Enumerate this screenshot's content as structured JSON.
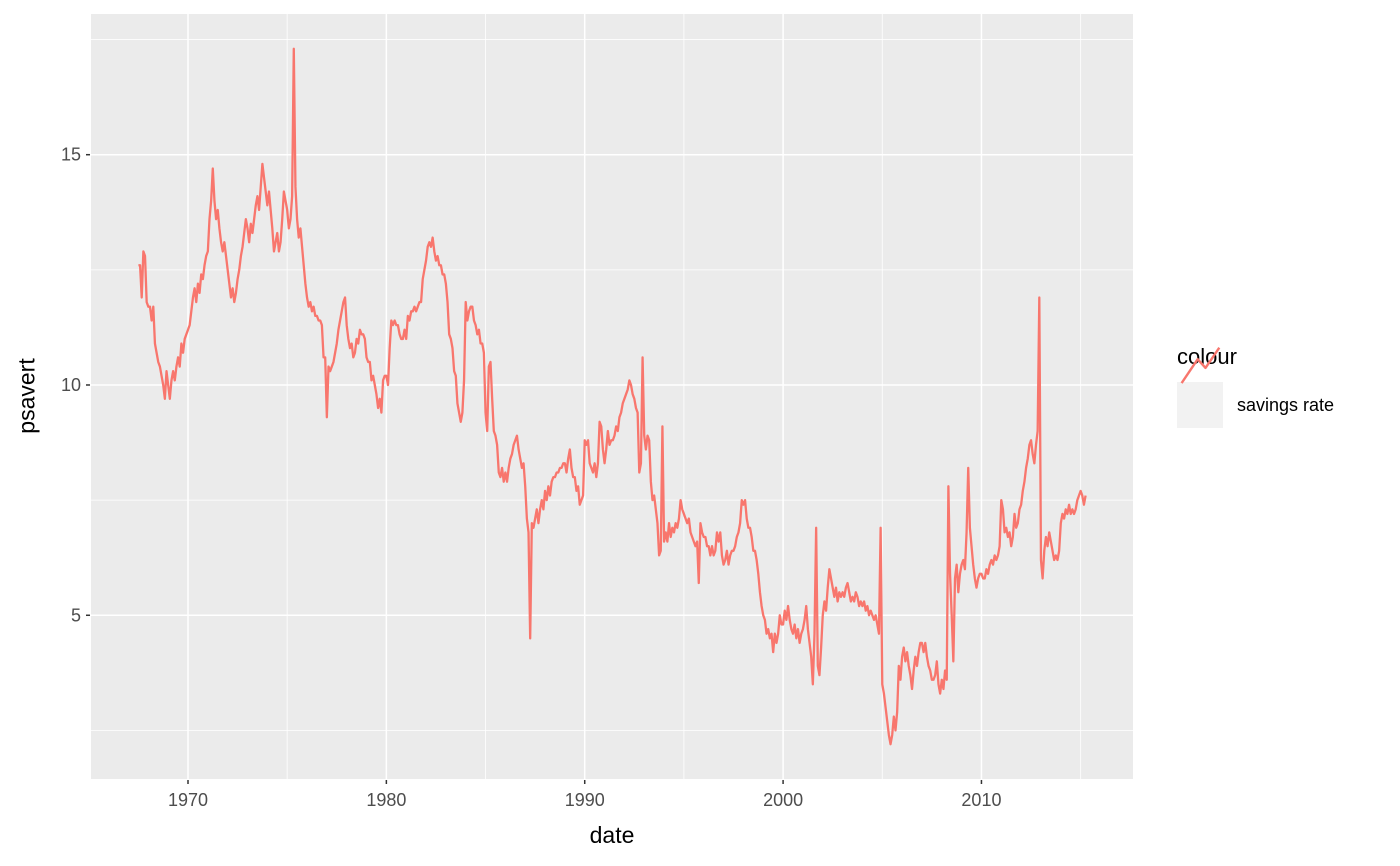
{
  "chart_data": {
    "type": "line",
    "title": "",
    "xlabel": "date",
    "ylabel": "psavert",
    "legend_title": "colour",
    "legend_position": "right",
    "grid": "on",
    "panel_background": "#EBEBEB",
    "gridline_color": "#FFFFFF",
    "tick_text_color": "#4D4D4D",
    "tick_mark_color": "#333333",
    "legend_key_fill": "#F2F2F2",
    "x_ticks": [
      1970,
      1980,
      1990,
      2000,
      2010
    ],
    "x_minor_ticks": [
      1965,
      1975,
      1985,
      1995,
      2005,
      2015
    ],
    "y_ticks": [
      5,
      10,
      15
    ],
    "y_minor_ticks": [
      2.5,
      7.5,
      12.5,
      17.5
    ],
    "xlim": [
      1965.11,
      2017.64
    ],
    "ylim": [
      1.445,
      18.055
    ],
    "series": [
      {
        "name": "savings rate",
        "color": "#F8766D",
        "x_start_year": 1967,
        "x_start_month": 7,
        "frequency": "monthly",
        "values": [
          12.6,
          12.6,
          11.9,
          12.9,
          12.8,
          11.8,
          11.7,
          11.7,
          11.4,
          11.7,
          10.9,
          10.7,
          10.5,
          10.4,
          10.2,
          10.0,
          9.7,
          10.3,
          10.0,
          9.7,
          10.1,
          10.3,
          10.1,
          10.4,
          10.6,
          10.4,
          10.9,
          10.7,
          11.0,
          11.1,
          11.2,
          11.3,
          11.6,
          11.9,
          12.1,
          11.8,
          12.2,
          12.0,
          12.4,
          12.3,
          12.6,
          12.8,
          12.9,
          13.6,
          14.0,
          14.7,
          14.0,
          13.6,
          13.8,
          13.4,
          13.1,
          12.9,
          13.1,
          12.8,
          12.5,
          12.2,
          11.9,
          12.1,
          11.8,
          12.0,
          12.3,
          12.5,
          12.8,
          13.0,
          13.3,
          13.6,
          13.4,
          13.1,
          13.5,
          13.3,
          13.6,
          13.9,
          14.1,
          13.8,
          14.3,
          14.8,
          14.5,
          14.2,
          13.9,
          14.2,
          13.8,
          13.4,
          12.9,
          13.1,
          13.3,
          12.9,
          13.1,
          13.6,
          14.2,
          14.0,
          13.8,
          13.4,
          13.6,
          14.1,
          17.3,
          14.3,
          13.6,
          13.2,
          13.4,
          13.0,
          12.6,
          12.2,
          11.9,
          11.7,
          11.8,
          11.6,
          11.7,
          11.5,
          11.5,
          11.4,
          11.4,
          11.3,
          10.6,
          10.6,
          9.3,
          10.4,
          10.3,
          10.4,
          10.5,
          10.7,
          10.9,
          11.2,
          11.4,
          11.6,
          11.8,
          11.9,
          11.3,
          11.0,
          10.8,
          10.9,
          10.6,
          10.7,
          11.0,
          10.9,
          11.2,
          11.1,
          11.1,
          11.0,
          10.6,
          10.5,
          10.5,
          10.1,
          10.2,
          10.0,
          9.8,
          9.5,
          9.7,
          9.4,
          10.1,
          10.2,
          10.2,
          10.0,
          10.8,
          11.4,
          11.3,
          11.4,
          11.3,
          11.3,
          11.1,
          11.0,
          11.0,
          11.2,
          11.0,
          11.5,
          11.4,
          11.6,
          11.6,
          11.7,
          11.6,
          11.7,
          11.8,
          11.8,
          12.3,
          12.5,
          12.7,
          13.0,
          13.1,
          13.0,
          13.2,
          12.9,
          12.7,
          12.8,
          12.6,
          12.6,
          12.4,
          12.4,
          12.2,
          11.8,
          11.1,
          11.0,
          10.8,
          10.3,
          10.2,
          9.6,
          9.4,
          9.2,
          9.4,
          10.1,
          11.8,
          11.4,
          11.6,
          11.7,
          11.7,
          11.4,
          11.3,
          11.1,
          11.2,
          10.9,
          10.9,
          10.7,
          9.4,
          9.0,
          10.4,
          10.5,
          9.7,
          9.0,
          8.9,
          8.7,
          8.1,
          8.0,
          8.2,
          7.9,
          8.1,
          7.9,
          8.2,
          8.4,
          8.5,
          8.7,
          8.8,
          8.9,
          8.6,
          8.4,
          8.2,
          8.3,
          7.8,
          7.1,
          6.8,
          4.5,
          7.0,
          6.9,
          7.1,
          7.3,
          7.0,
          7.3,
          7.5,
          7.3,
          7.7,
          7.5,
          7.8,
          7.6,
          7.9,
          8.0,
          8.0,
          8.1,
          8.1,
          8.2,
          8.2,
          8.3,
          8.3,
          8.1,
          8.4,
          8.6,
          8.2,
          8.0,
          8.0,
          7.7,
          7.8,
          7.4,
          7.5,
          7.6,
          8.8,
          8.7,
          8.8,
          8.3,
          8.2,
          8.1,
          8.3,
          8.0,
          8.3,
          9.2,
          9.1,
          8.6,
          8.3,
          8.6,
          9.0,
          8.7,
          8.8,
          8.8,
          8.9,
          9.1,
          9.0,
          9.3,
          9.4,
          9.6,
          9.7,
          9.8,
          9.9,
          10.1,
          10.0,
          9.8,
          9.7,
          9.5,
          9.4,
          8.1,
          8.3,
          10.6,
          8.9,
          8.6,
          8.9,
          8.8,
          7.9,
          7.5,
          7.6,
          7.3,
          7.0,
          6.3,
          6.4,
          9.1,
          6.6,
          6.8,
          6.6,
          7.0,
          6.7,
          6.9,
          6.8,
          7.0,
          6.9,
          7.1,
          7.5,
          7.3,
          7.2,
          7.1,
          7.0,
          7.1,
          6.8,
          6.7,
          6.6,
          6.5,
          6.6,
          5.7,
          7.0,
          6.8,
          6.7,
          6.7,
          6.5,
          6.5,
          6.3,
          6.5,
          6.3,
          6.4,
          6.8,
          6.6,
          6.8,
          6.3,
          6.1,
          6.2,
          6.4,
          6.1,
          6.3,
          6.4,
          6.4,
          6.5,
          6.7,
          6.8,
          7.0,
          7.5,
          7.4,
          7.5,
          7.1,
          6.9,
          6.9,
          6.7,
          6.4,
          6.4,
          6.2,
          5.9,
          5.5,
          5.2,
          5.0,
          4.9,
          4.6,
          4.7,
          4.5,
          4.6,
          4.2,
          4.6,
          4.4,
          4.6,
          5.0,
          4.8,
          4.8,
          5.1,
          4.9,
          5.2,
          4.9,
          4.7,
          4.6,
          4.8,
          4.5,
          4.7,
          4.4,
          4.6,
          4.7,
          4.9,
          5.2,
          4.7,
          4.4,
          4.1,
          3.5,
          4.6,
          6.9,
          3.9,
          3.7,
          4.3,
          5.0,
          5.3,
          5.1,
          5.6,
          6.0,
          5.8,
          5.6,
          5.4,
          5.6,
          5.3,
          5.5,
          5.4,
          5.5,
          5.4,
          5.6,
          5.7,
          5.5,
          5.3,
          5.4,
          5.3,
          5.5,
          5.4,
          5.2,
          5.3,
          5.2,
          5.3,
          5.1,
          5.2,
          5.0,
          5.1,
          5.0,
          4.9,
          5.0,
          4.8,
          4.6,
          6.9,
          3.5,
          3.3,
          3.0,
          2.7,
          2.4,
          2.2,
          2.4,
          2.8,
          2.5,
          2.9,
          3.9,
          3.6,
          4.1,
          4.3,
          4.0,
          4.2,
          3.9,
          3.7,
          3.4,
          3.8,
          4.1,
          3.9,
          4.2,
          4.4,
          4.4,
          4.2,
          4.4,
          4.1,
          3.9,
          3.8,
          3.6,
          3.6,
          3.7,
          4.0,
          3.5,
          3.3,
          3.6,
          3.4,
          3.8,
          3.6,
          7.8,
          5.9,
          5.0,
          4.0,
          5.8,
          6.1,
          5.5,
          5.9,
          6.1,
          6.2,
          6.0,
          6.8,
          8.2,
          6.9,
          6.5,
          6.1,
          5.8,
          5.6,
          5.8,
          5.9,
          5.9,
          5.8,
          5.8,
          6.0,
          5.9,
          6.1,
          6.2,
          6.1,
          6.3,
          6.2,
          6.3,
          6.5,
          7.5,
          7.3,
          6.8,
          6.9,
          6.7,
          6.8,
          6.5,
          6.7,
          7.2,
          6.9,
          7.0,
          7.3,
          7.4,
          7.7,
          7.9,
          8.2,
          8.4,
          8.7,
          8.8,
          8.5,
          8.3,
          8.7,
          9.0,
          11.9,
          6.2,
          5.8,
          6.4,
          6.7,
          6.5,
          6.8,
          6.6,
          6.4,
          6.2,
          6.3,
          6.2,
          6.4,
          7.0,
          7.2,
          7.1,
          7.3,
          7.2,
          7.4,
          7.2,
          7.3,
          7.2,
          7.3,
          7.5,
          7.6,
          7.7,
          7.6,
          7.4,
          7.6
        ]
      }
    ],
    "legend_entries": [
      {
        "label": "savings rate",
        "color": "#F8766D"
      }
    ]
  }
}
